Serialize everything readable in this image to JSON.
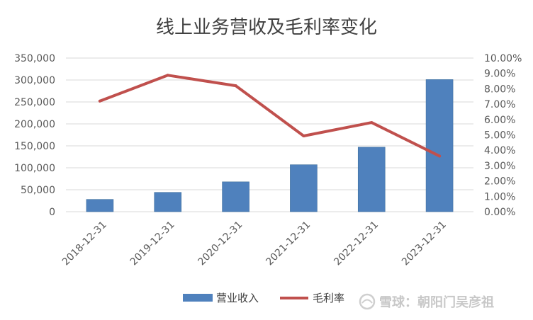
{
  "chart_data": {
    "type": "bar",
    "title": "线上业务营收及毛利率变化",
    "categories": [
      "2018-12-31",
      "2019-12-31",
      "2020-12-31",
      "2021-12-31",
      "2022-12-31",
      "2023-12-31"
    ],
    "series": [
      {
        "name": "营业收入",
        "type": "bar",
        "axis": "left",
        "color": "#4f81bd",
        "values": [
          28000,
          44000,
          68000,
          107000,
          147000,
          301000
        ]
      },
      {
        "name": "毛利率",
        "type": "line",
        "axis": "right",
        "color": "#c0504d",
        "values": [
          0.072,
          0.0888,
          0.082,
          0.0493,
          0.058,
          0.0362
        ]
      }
    ],
    "y_left": {
      "ylim": [
        0,
        350000
      ],
      "ticks": [
        "350,000",
        "300,000",
        "250,000",
        "200,000",
        "150,000",
        "100,000",
        "50,000",
        "0"
      ]
    },
    "y_right": {
      "ylim": [
        0,
        0.1
      ],
      "ticks": [
        "10.00%",
        "9.00%",
        "8.00%",
        "7.00%",
        "6.00%",
        "5.00%",
        "4.00%",
        "3.00%",
        "2.00%",
        "1.00%",
        "0.00%"
      ]
    },
    "grid": true,
    "legend_position": "bottom"
  },
  "watermark": {
    "text": "雪球：朝阳门吴彦祖"
  }
}
